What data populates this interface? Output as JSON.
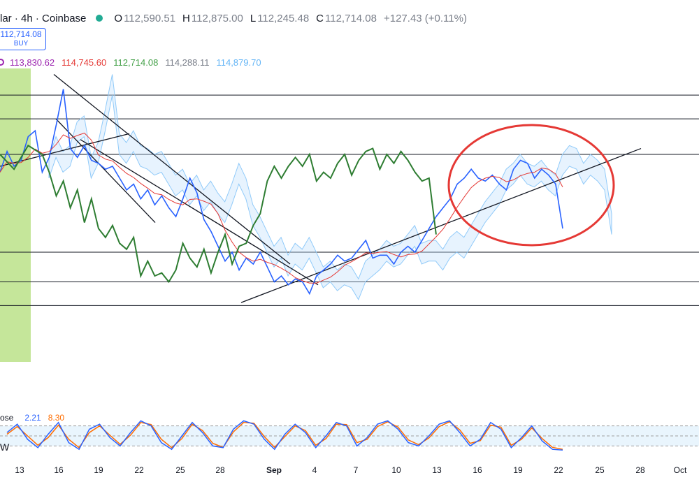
{
  "header": {
    "symbol": "lar · 4h · Coinbase",
    "open_key": "O",
    "open": "112,590.51",
    "high_key": "H",
    "high": "112,875.00",
    "low_key": "L",
    "low": "112,245.48",
    "close_key": "C",
    "close": "112,714.08",
    "change": "+127.43 (+0.11%)"
  },
  "buy_box": {
    "price": "112,714.08",
    "label": "BUY"
  },
  "ichimoku_values": [
    {
      "value": "113,830.62",
      "color": "#9c27b0"
    },
    {
      "value": "114,745.60",
      "color": "#e53935"
    },
    {
      "value": "112,714.08",
      "color": "#43a047"
    },
    {
      "value": "114,288.11",
      "color": "#7a7f8a"
    },
    {
      "value": "114,879.70",
      "color": "#64b5f6"
    }
  ],
  "stoch": {
    "label": "ose",
    "k": "2.21",
    "d": "8.30"
  },
  "mini_label": "W",
  "chart_data": {
    "type": "line",
    "x_ticks": [
      "13",
      "16",
      "19",
      "22",
      "25",
      "28",
      "Sep",
      "4",
      "7",
      "10",
      "13",
      "16",
      "19",
      "22",
      "25",
      "28",
      "Oct"
    ],
    "x_tick_bold": [
      false,
      false,
      false,
      false,
      false,
      false,
      true,
      false,
      false,
      false,
      false,
      false,
      false,
      false,
      false,
      false,
      false
    ],
    "ylim": [
      107800,
      117700
    ],
    "horizontal_levels": [
      116800,
      116000,
      114800,
      111500,
      110500,
      109700
    ],
    "price_series": [
      [
        0,
        114200
      ],
      [
        1,
        114900
      ],
      [
        2,
        114400
      ],
      [
        3,
        114600
      ],
      [
        4,
        115400
      ],
      [
        5,
        115600
      ],
      [
        6,
        114200
      ],
      [
        7,
        114700
      ],
      [
        8,
        115800
      ],
      [
        9,
        117000
      ],
      [
        10,
        115000
      ],
      [
        11,
        114700
      ],
      [
        12,
        115100
      ],
      [
        13,
        114600
      ],
      [
        14,
        114500
      ],
      [
        15,
        114300
      ],
      [
        16,
        114400
      ],
      [
        17,
        114000
      ],
      [
        18,
        113600
      ],
      [
        19,
        113800
      ],
      [
        20,
        113300
      ],
      [
        21,
        113600
      ],
      [
        22,
        113100
      ],
      [
        23,
        113400
      ],
      [
        24,
        113000
      ],
      [
        25,
        112700
      ],
      [
        26,
        113300
      ],
      [
        27,
        114000
      ],
      [
        28,
        113500
      ],
      [
        29,
        112600
      ],
      [
        30,
        112200
      ],
      [
        31,
        111700
      ],
      [
        32,
        111200
      ],
      [
        33,
        111500
      ],
      [
        34,
        110900
      ],
      [
        35,
        111300
      ],
      [
        36,
        111100
      ],
      [
        37,
        111500
      ],
      [
        38,
        111000
      ],
      [
        39,
        110500
      ],
      [
        40,
        110700
      ],
      [
        41,
        110400
      ],
      [
        42,
        110600
      ],
      [
        43,
        110500
      ],
      [
        44,
        110100
      ],
      [
        45,
        110700
      ],
      [
        46,
        110900
      ],
      [
        47,
        111100
      ],
      [
        48,
        111400
      ],
      [
        49,
        111200
      ],
      [
        50,
        111300
      ],
      [
        51,
        111600
      ],
      [
        52,
        111900
      ],
      [
        53,
        111300
      ],
      [
        54,
        111400
      ],
      [
        55,
        111400
      ],
      [
        56,
        111100
      ],
      [
        57,
        111500
      ],
      [
        58,
        111700
      ],
      [
        59,
        111500
      ],
      [
        60,
        111900
      ],
      [
        61,
        112300
      ],
      [
        62,
        112700
      ],
      [
        63,
        113000
      ],
      [
        64,
        113300
      ],
      [
        65,
        113800
      ],
      [
        66,
        114000
      ],
      [
        67,
        114300
      ],
      [
        68,
        114000
      ],
      [
        69,
        113900
      ],
      [
        70,
        114100
      ],
      [
        71,
        113800
      ],
      [
        72,
        113600
      ],
      [
        73,
        114300
      ],
      [
        74,
        114600
      ],
      [
        75,
        114500
      ],
      [
        76,
        114000
      ],
      [
        77,
        114300
      ],
      [
        78,
        114100
      ],
      [
        79,
        113800
      ],
      [
        80,
        112300
      ]
    ],
    "lagging_span": [
      [
        0,
        114800
      ],
      [
        2,
        114300
      ],
      [
        4,
        115100
      ],
      [
        6,
        114800
      ],
      [
        7,
        114200
      ],
      [
        8,
        113400
      ],
      [
        9,
        113900
      ],
      [
        10,
        113000
      ],
      [
        11,
        113600
      ],
      [
        12,
        112500
      ],
      [
        13,
        113300
      ],
      [
        14,
        112300
      ],
      [
        15,
        112000
      ],
      [
        16,
        112400
      ],
      [
        17,
        111800
      ],
      [
        18,
        111600
      ],
      [
        19,
        112000
      ],
      [
        20,
        110700
      ],
      [
        21,
        111200
      ],
      [
        22,
        110700
      ],
      [
        23,
        110800
      ],
      [
        24,
        110500
      ],
      [
        25,
        110900
      ],
      [
        26,
        111800
      ],
      [
        27,
        111300
      ],
      [
        28,
        111000
      ],
      [
        29,
        111600
      ],
      [
        30,
        110800
      ],
      [
        31,
        111500
      ],
      [
        32,
        112100
      ],
      [
        33,
        111100
      ],
      [
        34,
        111700
      ],
      [
        35,
        111800
      ],
      [
        36,
        112400
      ],
      [
        37,
        112800
      ],
      [
        38,
        113900
      ],
      [
        39,
        114400
      ],
      [
        40,
        114000
      ],
      [
        41,
        114400
      ],
      [
        42,
        114700
      ],
      [
        43,
        114400
      ],
      [
        44,
        114800
      ],
      [
        45,
        113900
      ],
      [
        46,
        114200
      ],
      [
        47,
        114000
      ],
      [
        48,
        114500
      ],
      [
        49,
        114800
      ],
      [
        50,
        114100
      ],
      [
        51,
        114600
      ],
      [
        52,
        114900
      ],
      [
        53,
        115000
      ],
      [
        54,
        114300
      ],
      [
        55,
        114800
      ],
      [
        56,
        114500
      ],
      [
        57,
        114900
      ],
      [
        58,
        114600
      ],
      [
        59,
        114200
      ],
      [
        60,
        113900
      ],
      [
        61,
        114000
      ],
      [
        62,
        112100
      ]
    ],
    "trendlines": [
      [
        [
          77,
          117500
        ],
        [
          415,
          111100
        ]
      ],
      [
        [
          80,
          116000
        ],
        [
          222,
          112500
        ]
      ],
      [
        [
          115,
          115300
        ],
        [
          455,
          110400
        ]
      ],
      [
        [
          0,
          114400
        ],
        [
          185,
          115500
        ]
      ],
      [
        [
          345,
          109800
        ],
        [
          917,
          115000
        ]
      ]
    ],
    "stoch_k": [
      60,
      85,
      40,
      15,
      55,
      90,
      30,
      10,
      70,
      85,
      45,
      20,
      60,
      95,
      80,
      30,
      10,
      50,
      90,
      60,
      20,
      15,
      70,
      95,
      85,
      40,
      10,
      55,
      85,
      60,
      15,
      50,
      90,
      80,
      20,
      45,
      85,
      95,
      70,
      30,
      20,
      50,
      85,
      95,
      60,
      20,
      40,
      90,
      70,
      15,
      45,
      80,
      35,
      10,
      8
    ],
    "stoch_d": [
      55,
      78,
      50,
      22,
      45,
      82,
      40,
      15,
      60,
      80,
      52,
      25,
      52,
      90,
      84,
      40,
      15,
      42,
      85,
      66,
      28,
      16,
      62,
      90,
      88,
      48,
      16,
      48,
      80,
      66,
      22,
      42,
      85,
      84,
      30,
      40,
      78,
      92,
      76,
      38,
      24,
      44,
      78,
      92,
      68,
      28,
      36,
      82,
      76,
      22,
      40,
      74,
      42,
      16,
      10
    ]
  }
}
